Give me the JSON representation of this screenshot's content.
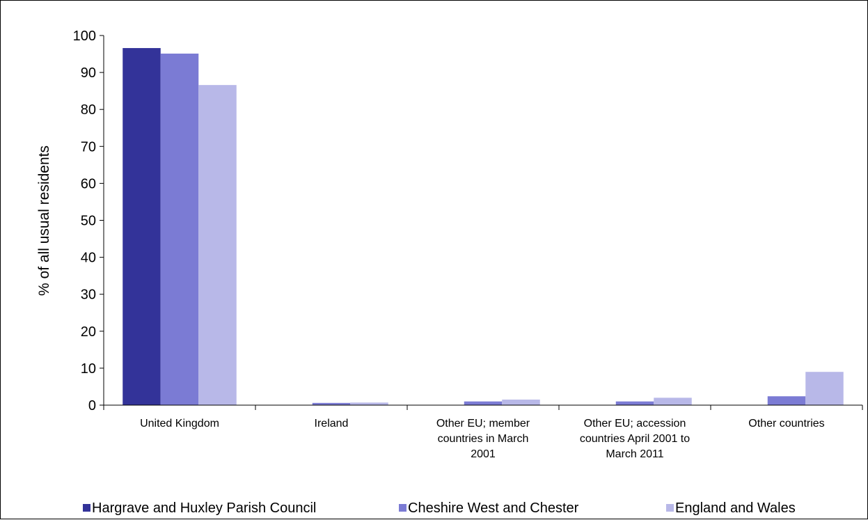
{
  "chart_data": {
    "type": "bar",
    "title": "",
    "xlabel": "",
    "ylabel": "% of all usual residents",
    "ylim": [
      0,
      100
    ],
    "yticks": [
      0,
      10,
      20,
      30,
      40,
      50,
      60,
      70,
      80,
      90,
      100
    ],
    "grid": false,
    "legend_position": "bottom",
    "categories": [
      [
        "United Kingdom"
      ],
      [
        "Ireland"
      ],
      [
        "Other EU; member",
        "countries in March",
        "2001"
      ],
      [
        "Other EU; accession",
        "countries April 2001 to",
        "March 2011"
      ],
      [
        "Other countries"
      ]
    ],
    "series": [
      {
        "name": "Hargrave and Huxley Parish Council",
        "color": "#333399",
        "values": [
          96.6,
          0.0,
          0.0,
          0.0,
          0.0
        ]
      },
      {
        "name": "Cheshire West and Chester",
        "color": "#7b7bd4",
        "values": [
          95.1,
          0.6,
          1.0,
          1.0,
          2.4
        ]
      },
      {
        "name": "England and Wales",
        "color": "#b8b8e8",
        "values": [
          86.6,
          0.7,
          1.5,
          2.0,
          9.0
        ]
      }
    ]
  }
}
